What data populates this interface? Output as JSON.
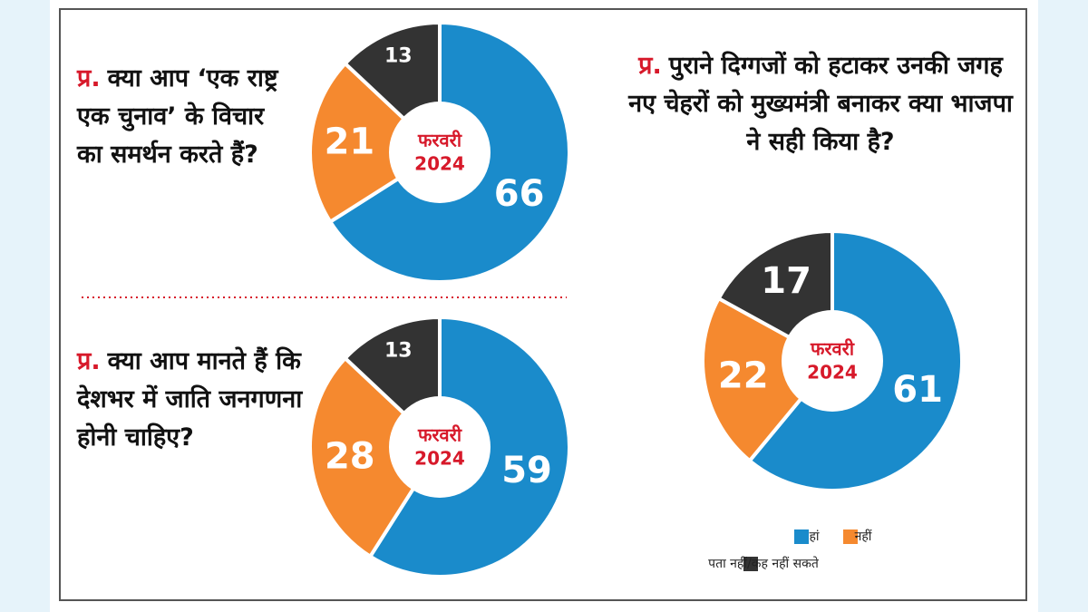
{
  "chart_data": [
    {
      "type": "pie",
      "marker": "प्र.",
      "title": "क्या आप ‘एक राष्ट्र एक चुनाव’ के विचार का समर्थन करते हैं?",
      "center_text": [
        "फरवरी",
        "2024"
      ],
      "values": [
        66,
        21,
        13
      ]
    },
    {
      "type": "pie",
      "marker": "प्र.",
      "title": "क्या आप मानते हैं कि देशभर में जाति जनगणना होनी चाहिए?",
      "center_text": [
        "फरवरी",
        "2024"
      ],
      "values": [
        59,
        28,
        13
      ]
    },
    {
      "type": "pie",
      "marker": "प्र.",
      "title": "पुराने दिग्गजों को हटाकर उनकी जगह नए चेहरों को मुख्यमंत्री बनाकर क्या भाजपा ने सही किया है?",
      "center_text": [
        "फरवरी",
        "2024"
      ],
      "values": [
        61,
        22,
        17
      ]
    }
  ],
  "legend": [
    {
      "name": "हां",
      "color": "#1a8bcb"
    },
    {
      "name": "नहीं",
      "color": "#f5892f"
    },
    {
      "name": "पता नहीं/कह नहीं सकते",
      "color": "#333333"
    }
  ]
}
